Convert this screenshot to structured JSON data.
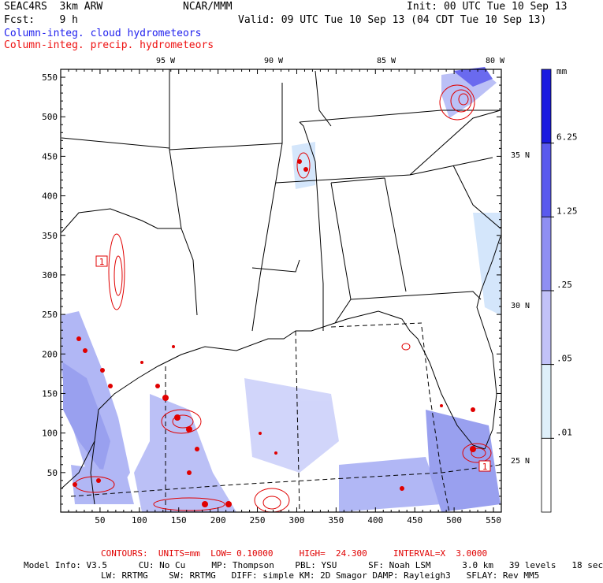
{
  "header": {
    "model": "SEAC4RS  3km ARW",
    "org": "NCAR/MMM",
    "init": "Init: 00 UTC Tue 10 Sep 13",
    "fcst": "Fcst:    9 h",
    "valid": "Valid: 09 UTC Tue 10 Sep 13 (04 CDT Tue 10 Sep 13)",
    "field_cloud": "Column-integ. cloud hydrometeors",
    "field_precip": "Column-integ. precip. hydrometeors"
  },
  "colors": {
    "cloud_text": "#2222ee",
    "precip_text": "#ee1111",
    "contour": "#e00000"
  },
  "axes": {
    "x_ticks": [
      "50",
      "100",
      "150",
      "200",
      "250",
      "300",
      "350",
      "400",
      "450",
      "500",
      "550"
    ],
    "y_ticks": [
      "50",
      "100",
      "150",
      "200",
      "250",
      "300",
      "350",
      "400",
      "450",
      "500",
      "550"
    ],
    "lon_labels": [
      "95 W",
      "90 W",
      "85 W",
      "80 W"
    ],
    "lat_labels": [
      "35 N",
      "30 N",
      "25 N"
    ]
  },
  "legend": {
    "unit": "mm",
    "levels": [
      "6.25",
      "1.25",
      ".25",
      ".05",
      ".01"
    ],
    "colors": [
      "#1a1ae0",
      "#5a5aee",
      "#8f8ff3",
      "#c2c2f8",
      "#dff0fa",
      "#ffffff"
    ]
  },
  "contour_label": "1",
  "footer": {
    "contours": "CONTOURS:  UNITS=mm  LOW= 0.10000     HIGH=  24.300     INTERVAL=X  3.0000",
    "info1": "Model Info: V3.5      CU: No Cu     MP: Thompson    PBL: YSU      SF: Noah LSM      3.0 km   39 levels   18 sec",
    "info2": "LW: RRTMG    SW: RRTMG   DIFF: simple KM: 2D Smagor DAMP: Rayleigh3   SFLAY: Rev MM5"
  }
}
